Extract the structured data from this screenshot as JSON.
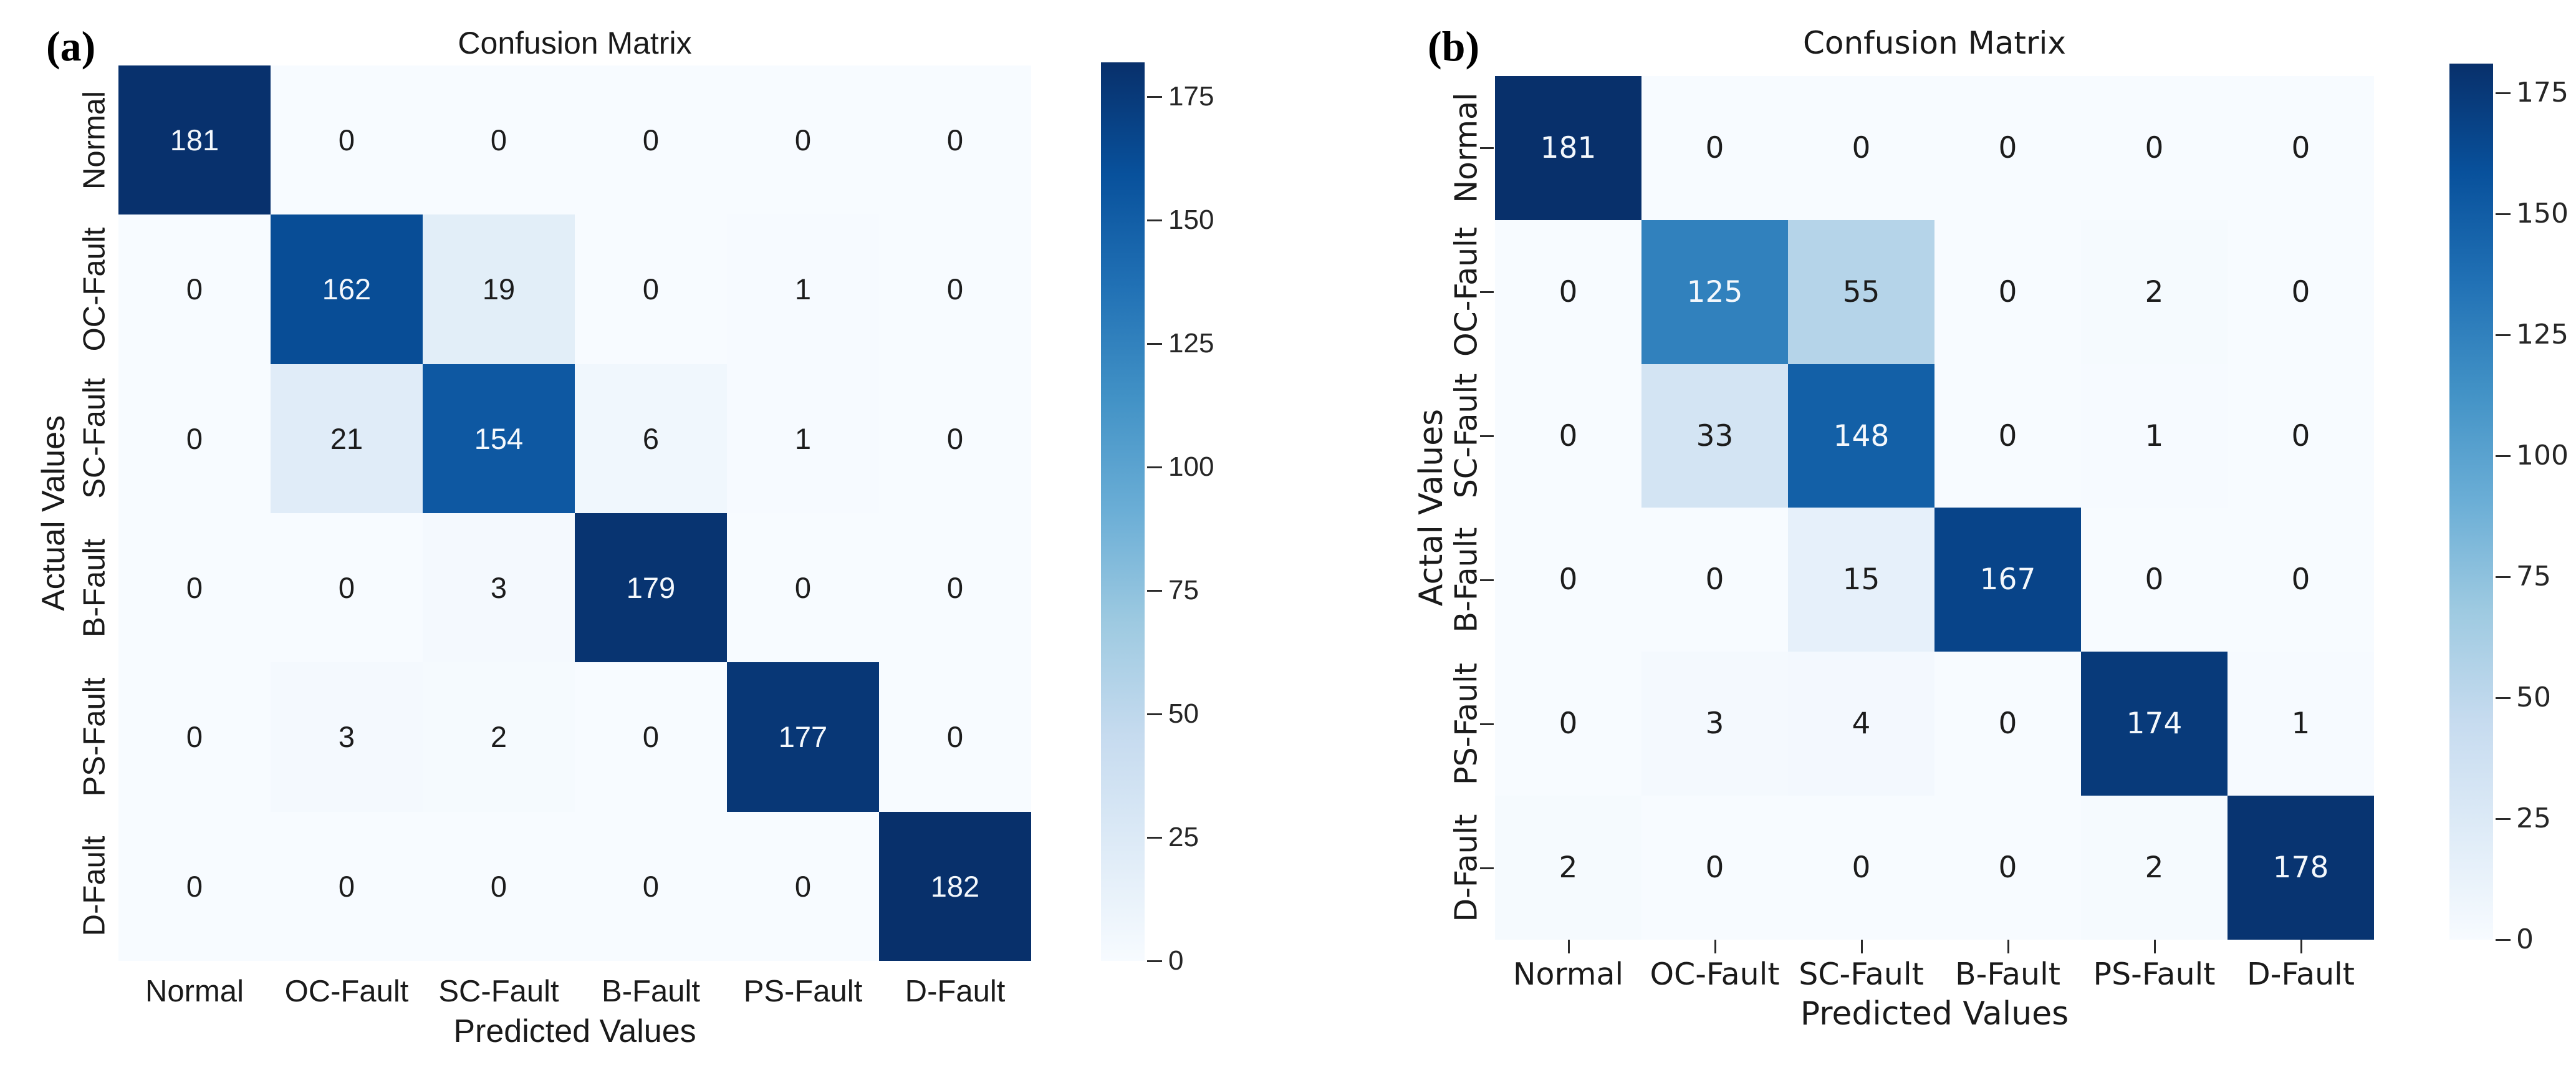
{
  "style": {
    "colormap_name": "Blues",
    "colormap_stops": [
      "#f7fbff",
      "#deebf7",
      "#c6dbef",
      "#9ecae1",
      "#6baed6",
      "#4292c6",
      "#2171b5",
      "#08519c",
      "#08306b"
    ],
    "cell_text_light": "#f4f8fc",
    "cell_text_dark": "#1c1c1c",
    "tick_mark_color": "#2a2a2a",
    "background": "#ffffff"
  },
  "chart_data": [
    {
      "type": "heatmap",
      "panel_tag": "(a)",
      "title": "Confusion Matrix",
      "xlabel": "Predicted Values",
      "ylabel": "Actual Values",
      "x_categories": [
        "Normal",
        "OC-Fault",
        "SC-Fault",
        "B-Fault",
        "PS-Fault",
        "D-Fault"
      ],
      "y_categories": [
        "Normal",
        "OC-Fault",
        "SC-Fault",
        "B-Fault",
        "PS-Fault",
        "D-Fault"
      ],
      "matrix": [
        [
          181,
          0,
          0,
          0,
          0,
          0
        ],
        [
          0,
          162,
          19,
          0,
          1,
          0
        ],
        [
          0,
          21,
          154,
          6,
          1,
          0
        ],
        [
          0,
          0,
          3,
          179,
          0,
          0
        ],
        [
          0,
          3,
          2,
          0,
          177,
          0
        ],
        [
          0,
          0,
          0,
          0,
          0,
          182
        ]
      ],
      "vmin": 0,
      "vmax": 182,
      "colorbar_ticks": [
        0,
        25,
        50,
        75,
        100,
        125,
        150,
        175
      ],
      "colorbar_position": "right",
      "axis_tick_marks": false,
      "grid": false
    },
    {
      "type": "heatmap",
      "panel_tag": "(b)",
      "title": "Confusion Matrix",
      "xlabel": "Predicted Values",
      "ylabel": "Actal Values",
      "x_categories": [
        "Normal",
        "OC-Fault",
        "SC-Fault",
        "B-Fault",
        "PS-Fault",
        "D-Fault"
      ],
      "y_categories": [
        "Normal",
        "OC-Fault",
        "SC-Fault",
        "B-Fault",
        "PS-Fault",
        "D-Fault"
      ],
      "matrix": [
        [
          181,
          0,
          0,
          0,
          0,
          0
        ],
        [
          0,
          125,
          55,
          0,
          2,
          0
        ],
        [
          0,
          33,
          148,
          0,
          1,
          0
        ],
        [
          0,
          0,
          15,
          167,
          0,
          0
        ],
        [
          0,
          3,
          4,
          0,
          174,
          1
        ],
        [
          2,
          0,
          0,
          0,
          2,
          178
        ]
      ],
      "vmin": 0,
      "vmax": 181,
      "colorbar_ticks": [
        0,
        25,
        50,
        75,
        100,
        125,
        150,
        175
      ],
      "colorbar_position": "right",
      "axis_tick_marks": true,
      "grid": false
    }
  ]
}
